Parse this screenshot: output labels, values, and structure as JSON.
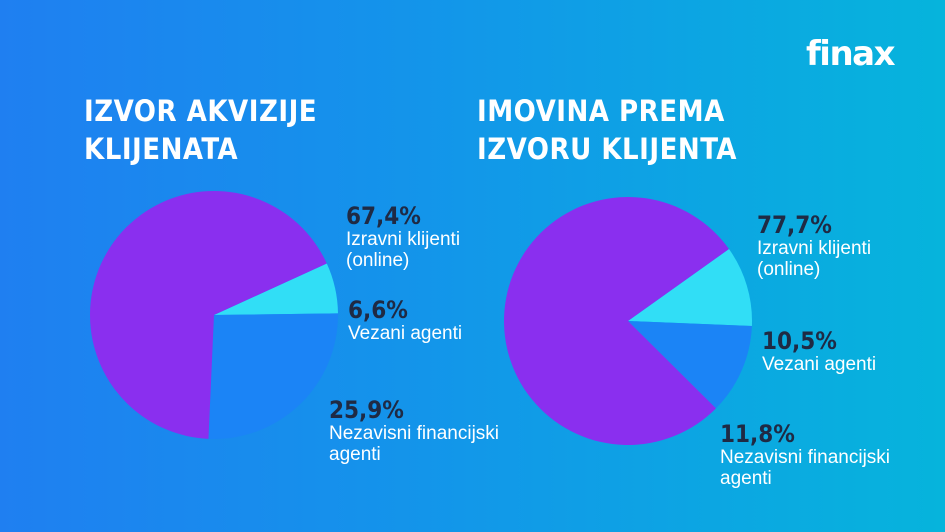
{
  "brand": {
    "logo_text": "finax"
  },
  "colors": {
    "bg_left": "#1f7ff1",
    "bg_right": "#06b4dc",
    "pct_text": "#1f2a44",
    "label_text": "#ffffff"
  },
  "chart_data": [
    {
      "type": "pie",
      "title": "IZVOR AKVIZIJE KLIJENATA",
      "title_lines": [
        "IZVOR AKVIZIJE",
        "KLIJENATA"
      ],
      "slices": [
        {
          "label": "Izravni klijenti (online)",
          "label_lines": [
            "Izravni klijenti",
            "(online)"
          ],
          "value": 67.4,
          "value_text": "67,4%",
          "color": "#8a2fef"
        },
        {
          "label": "Vezani agenti",
          "label_lines": [
            "Vezani agenti"
          ],
          "value": 6.6,
          "value_text": "6,6%",
          "color": "#31def6"
        },
        {
          "label": "Nezavisni financijski agenti",
          "label_lines": [
            "Nezavisni financijski",
            "agenti"
          ],
          "value": 25.9,
          "value_text": "25,9%",
          "color": "#1b84f6"
        }
      ]
    },
    {
      "type": "pie",
      "title": "IMOVINA PREMA IZVORU KLIJENTA",
      "title_lines": [
        "IMOVINA PREMA",
        "IZVORU KLIJENTA"
      ],
      "slices": [
        {
          "label": "Izravni klijenti (online)",
          "label_lines": [
            "Izravni klijenti",
            "(online)"
          ],
          "value": 77.7,
          "value_text": "77,7%",
          "color": "#8a2fef"
        },
        {
          "label": "Vezani agenti",
          "label_lines": [
            "Vezani agenti"
          ],
          "value": 10.5,
          "value_text": "10,5%",
          "color": "#31def6"
        },
        {
          "label": "Nezavisni financijski agenti",
          "label_lines": [
            "Nezavisni financijski",
            "agenti"
          ],
          "value": 11.8,
          "value_text": "11,8%",
          "color": "#1b84f6"
        }
      ]
    }
  ]
}
